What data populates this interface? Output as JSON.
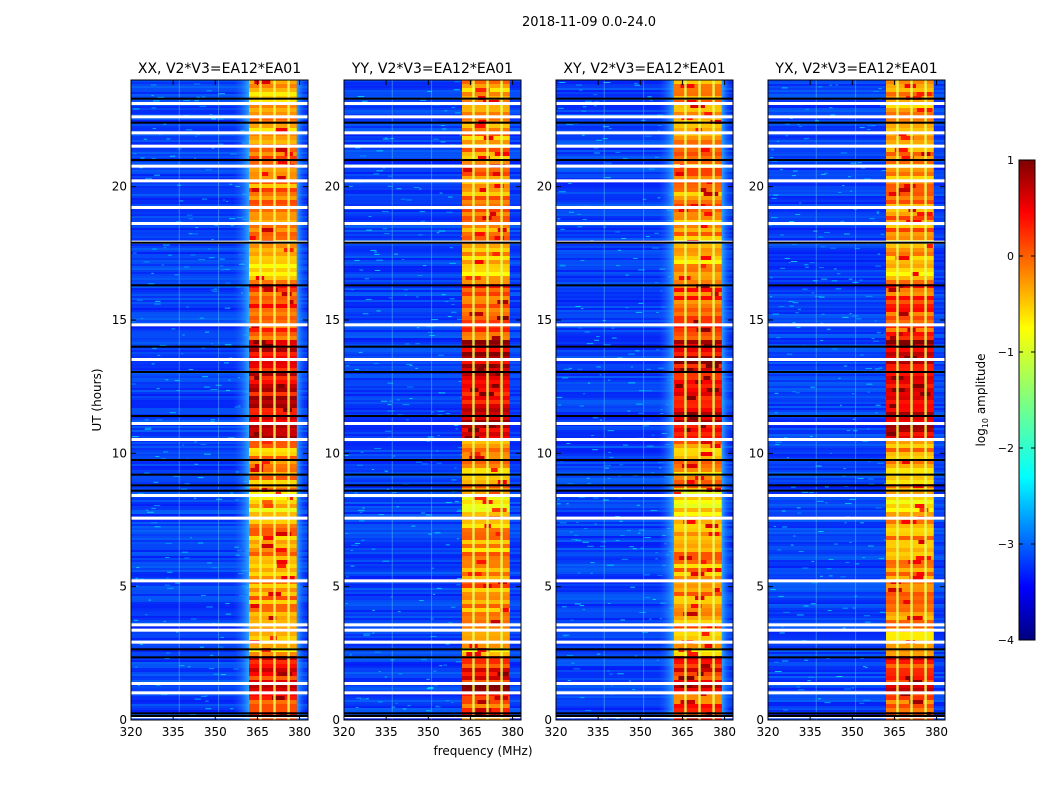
{
  "figure_title": "2018-11-09 0.0-24.0",
  "chart_data": {
    "type": "heatmap",
    "date_range": "2018-11-09 0.0-24.0",
    "panels": [
      {
        "title": "XX, V2*V3=EA12*EA01",
        "strong_band": [
          362,
          379
        ],
        "ramp_edge": true
      },
      {
        "title": "YY, V2*V3=EA12*EA01",
        "strong_band": [
          362,
          379
        ],
        "ramp_edge": false
      },
      {
        "title": "XY, V2*V3=EA12*EA01",
        "strong_band": [
          362,
          379
        ],
        "ramp_edge": true
      },
      {
        "title": "YX, V2*V3=EA12*EA01",
        "strong_band": [
          362,
          379
        ],
        "ramp_edge": false
      }
    ],
    "xlabel": "frequency (MHz)",
    "ylabel": "UT (hours)",
    "xlim": [
      320,
      383
    ],
    "ylim": [
      0,
      24
    ],
    "xticks": [
      320,
      335,
      350,
      365,
      380
    ],
    "yticks": [
      0,
      5,
      10,
      15,
      20
    ],
    "xtick_labels": [
      "320",
      "335",
      "350",
      "365",
      "380"
    ],
    "ytick_labels": [
      "0",
      "5",
      "10",
      "15",
      "20"
    ],
    "channel_lines_mhz": [
      366,
      371,
      376
    ],
    "white_gaps_hours": [
      0.1,
      1.0,
      1.35,
      2.9,
      3.35,
      3.55,
      5.2,
      7.55,
      8.4,
      10.5,
      11.1,
      13.5,
      14.8,
      17.9,
      18.6,
      19.2,
      20.2,
      20.75,
      21.5,
      22.0,
      22.6,
      23.1
    ],
    "black_gaps_hours": [
      0.15,
      0.25,
      2.35,
      2.65,
      8.6,
      8.8,
      9.2,
      9.75,
      11.4,
      13.05,
      14.0,
      16.3,
      17.9,
      21.0,
      22.4,
      23.3
    ],
    "colorbar": {
      "label": "log10 amplitude",
      "label_main": "log",
      "label_sub": "10",
      "label_rest": " amplitude",
      "range": [
        -4,
        1
      ],
      "ticks": [
        1,
        0,
        -1,
        -2,
        -3,
        -4
      ],
      "tick_labels": [
        "1",
        "0",
        "−1",
        "−2",
        "−3",
        "−4"
      ],
      "colormap": "jet"
    }
  }
}
